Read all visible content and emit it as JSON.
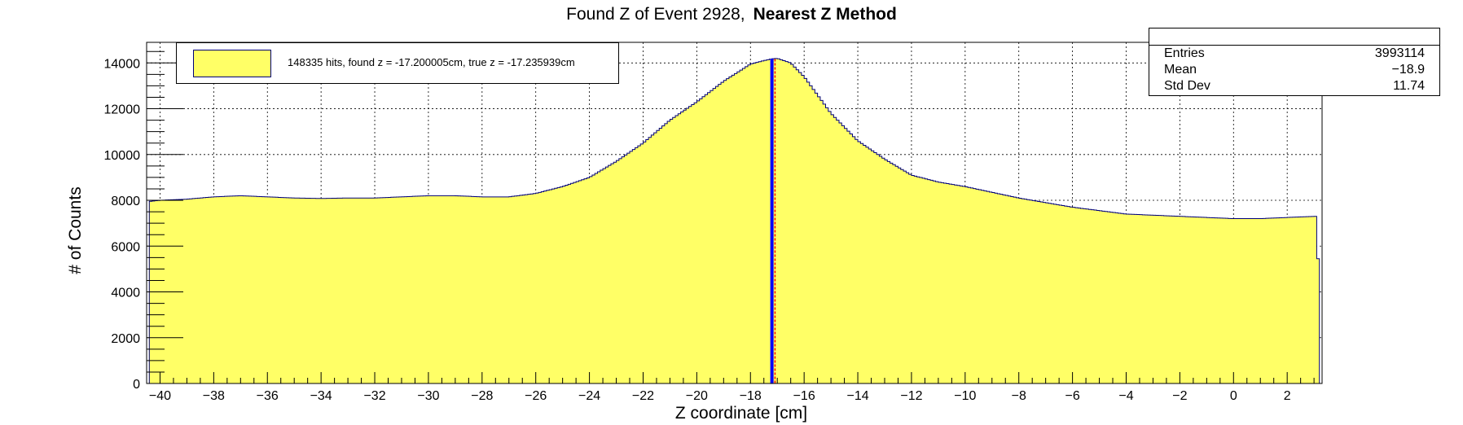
{
  "title": {
    "main": "Found Z of Event 2928,",
    "method": "Nearest Z Method"
  },
  "legend": {
    "label": "148335 hits, found z = -17.200005cm, true z = -17.235939cm"
  },
  "stats": {
    "rows": [
      {
        "key": "Entries",
        "value": "3993114"
      },
      {
        "key": "Mean",
        "value": "−18.9"
      },
      {
        "key": "Std Dev",
        "value": "11.74"
      }
    ]
  },
  "colors": {
    "fill": "#ffff66",
    "outline": "#00007a",
    "found_line": "#0000ff",
    "true_line": "#ff0000"
  },
  "chart_data": {
    "type": "area",
    "title": "Found Z of Event 2928, Nearest Z Method",
    "xlabel": "Z coordinate [cm]",
    "ylabel": "# of Counts",
    "xlim": [
      -40.5,
      3.3
    ],
    "ylim": [
      0,
      14900
    ],
    "x_ticks": [
      -40,
      -38,
      -36,
      -34,
      -32,
      -30,
      -28,
      -26,
      -24,
      -22,
      -20,
      -18,
      -16,
      -14,
      -12,
      -10,
      -8,
      -6,
      -4,
      -2,
      0,
      2
    ],
    "x_tick_labels": [
      "−40",
      "−38",
      "−36",
      "−34",
      "−32",
      "−30",
      "−28",
      "−26",
      "−24",
      "−22",
      "−20",
      "−18",
      "−16",
      "−14",
      "−12",
      "−10",
      "−8",
      "−6",
      "−4",
      "−2",
      "0",
      "2"
    ],
    "y_ticks": [
      0,
      2000,
      4000,
      6000,
      8000,
      10000,
      12000,
      14000
    ],
    "y_tick_labels": [
      "0",
      "2000",
      "4000",
      "6000",
      "8000",
      "10000",
      "12000",
      "14000"
    ],
    "grid": true,
    "series": [
      {
        "name": "148335 hits, found z = -17.200005cm, true z = -17.235939cm",
        "x": [
          -40.4,
          -40,
          -39,
          -38,
          -37,
          -36,
          -35,
          -34,
          -33,
          -32,
          -31,
          -30,
          -29,
          -28,
          -27,
          -26,
          -25,
          -24,
          -23,
          -22,
          -21,
          -20,
          -19,
          -18,
          -17.5,
          -17.2,
          -17,
          -16.5,
          -16,
          -15,
          -14,
          -13,
          -12,
          -11,
          -10,
          -9,
          -8,
          -7,
          -6,
          -5,
          -4,
          -3,
          -2,
          -1,
          0,
          1,
          2,
          3.1,
          3.2
        ],
        "y": [
          7950,
          8000,
          8050,
          8150,
          8200,
          8150,
          8100,
          8080,
          8100,
          8100,
          8150,
          8200,
          8200,
          8150,
          8150,
          8300,
          8600,
          9000,
          9700,
          10500,
          11500,
          12300,
          13200,
          13950,
          14100,
          14180,
          14200,
          14000,
          13400,
          11800,
          10600,
          9800,
          9100,
          8800,
          8600,
          8350,
          8100,
          7900,
          7700,
          7550,
          7400,
          7350,
          7300,
          7250,
          7200,
          7200,
          7250,
          7300,
          3600
        ]
      }
    ],
    "found_z": -17.200005,
    "true_z": -17.235939,
    "legend_position": "top-left",
    "stats_position": "top-right"
  }
}
